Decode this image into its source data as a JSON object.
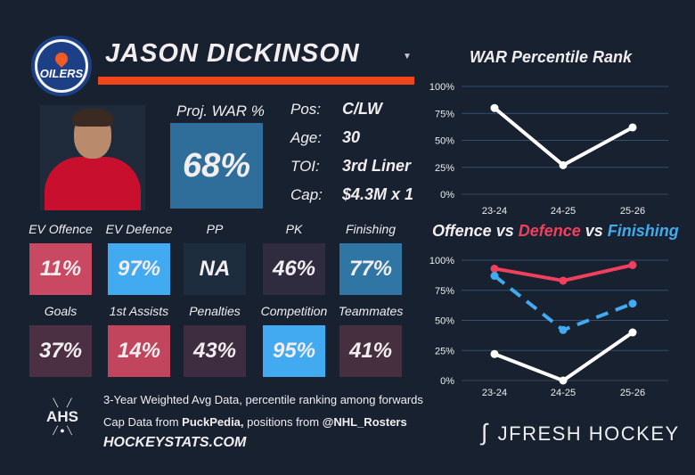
{
  "team_logo": {
    "text": "OILERS",
    "colors": [
      "#1c3f86",
      "#f15a24"
    ]
  },
  "player": {
    "name": "JASON DICKINSON",
    "proj_war_label": "Proj. WAR %",
    "proj_war": "68%",
    "info": [
      {
        "label": "Pos:",
        "value": "C/LW"
      },
      {
        "label": "Age:",
        "value": "30"
      },
      {
        "label": "TOI:",
        "value": "3rd Liner"
      },
      {
        "label": "Cap:",
        "value": "$4.3M x 1"
      }
    ]
  },
  "tiles": [
    {
      "label": "EV Offence",
      "value": "11%",
      "color": "#c94962"
    },
    {
      "label": "EV Defence",
      "value": "97%",
      "color": "#41aaf0"
    },
    {
      "label": "PP",
      "value": "NA",
      "color": "#1e2d3d"
    },
    {
      "label": "PK",
      "value": "46%",
      "color": "#302c3f"
    },
    {
      "label": "Finishing",
      "value": "77%",
      "color": "#2f76a4"
    },
    {
      "label": "Goals",
      "value": "37%",
      "color": "#4b2f42"
    },
    {
      "label": "1st Assists",
      "value": "14%",
      "color": "#c1455d"
    },
    {
      "label": "Penalties",
      "value": "43%",
      "color": "#3e2d41"
    },
    {
      "label": "Competition",
      "value": "95%",
      "color": "#41aaf0"
    },
    {
      "label": "Teammates",
      "value": "41%",
      "color": "#46303f"
    }
  ],
  "footer": {
    "line1": "3-Year Weighted Avg Data, percentile ranking among forwards",
    "line2_a": "Cap Data from ",
    "line2_b": "PuckPedia,",
    "line2_c": " positions from ",
    "line2_d": "@NHL_Rosters",
    "site": "HOCKEYSTATS.COM",
    "ahs_logo": "AHS",
    "brand": "JFRESH HOCKEY"
  },
  "chart_data": [
    {
      "type": "line",
      "title": "WAR Percentile Rank",
      "categories": [
        "23-24",
        "24-25",
        "25-26"
      ],
      "ylim": [
        0,
        100
      ],
      "yticks": [
        "0%",
        "25%",
        "50%",
        "75%",
        "100%"
      ],
      "grid": true,
      "series": [
        {
          "values": [
            80,
            27,
            62
          ],
          "color": "#ffffff"
        }
      ]
    },
    {
      "type": "line",
      "title_parts": [
        {
          "text": "Offence",
          "color": "#ffffff"
        },
        {
          "text": " vs ",
          "color": "#ffffff"
        },
        {
          "text": "Defence",
          "color": "#f0405e"
        },
        {
          "text": " vs ",
          "color": "#ffffff"
        },
        {
          "text": "Finishing",
          "color": "#41aaf0"
        }
      ],
      "categories": [
        "23-24",
        "24-25",
        "25-26"
      ],
      "ylim": [
        0,
        100
      ],
      "yticks": [
        "0%",
        "25%",
        "50%",
        "75%",
        "100%"
      ],
      "grid": true,
      "series": [
        {
          "name": "Offence",
          "values": [
            22,
            0,
            40
          ],
          "color": "#ffffff"
        },
        {
          "name": "Defence",
          "values": [
            93,
            83,
            96
          ],
          "color": "#f0405e"
        },
        {
          "name": "Finishing",
          "values": [
            87,
            42,
            64
          ],
          "color": "#41aaf0",
          "dashed": true
        }
      ]
    }
  ]
}
